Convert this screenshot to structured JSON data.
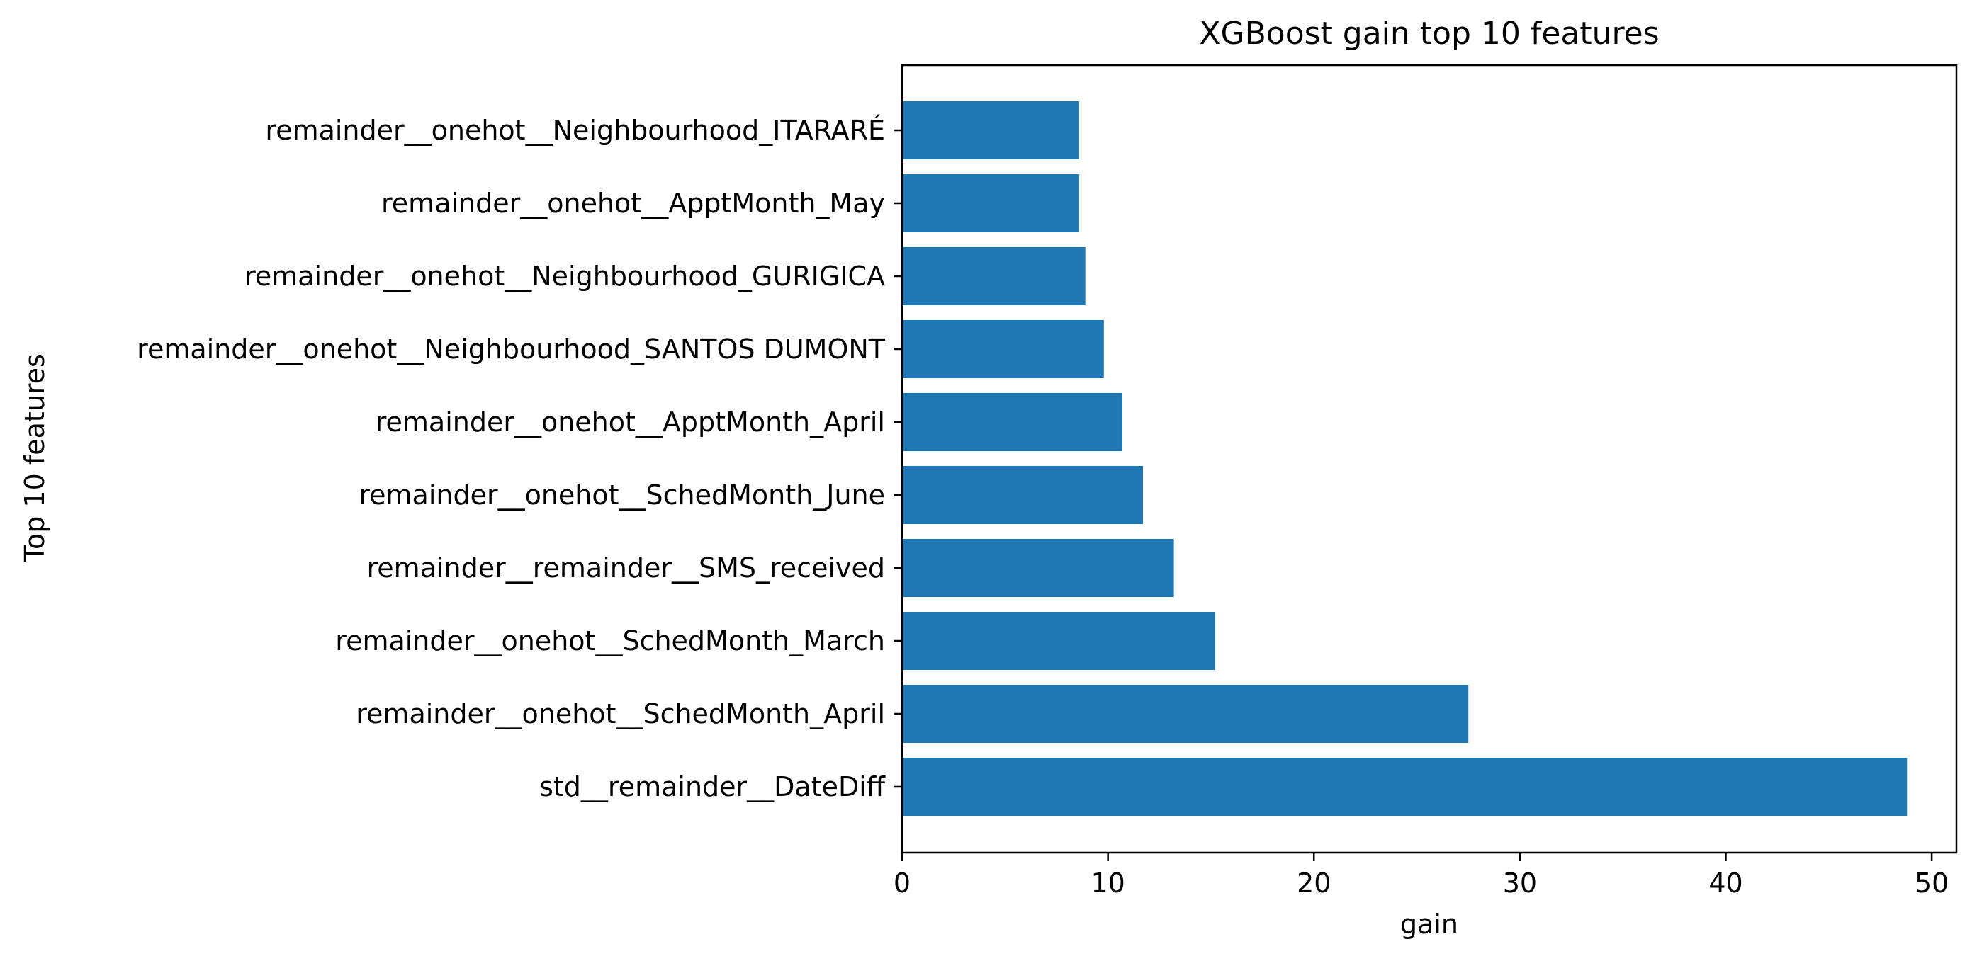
{
  "chart_data": {
    "type": "bar",
    "orientation": "horizontal",
    "title": "XGBoost gain top 10 features",
    "xlabel": "gain",
    "ylabel": "Top 10 features",
    "xlim": [
      0,
      51.2
    ],
    "xticks": [
      0,
      10,
      20,
      30,
      40,
      50
    ],
    "grid": false,
    "bar_color": "#1f77b4",
    "categories": [
      "remainder__onehot__Neighbourhood_ITARARÉ",
      "remainder__onehot__ApptMonth_May",
      "remainder__onehot__Neighbourhood_GURIGICA",
      "remainder__onehot__Neighbourhood_SANTOS DUMONT",
      "remainder__onehot__ApptMonth_April",
      "remainder__onehot__SchedMonth_June",
      "remainder__remainder__SMS_received",
      "remainder__onehot__SchedMonth_March",
      "remainder__onehot__SchedMonth_April",
      "std__remainder__DateDiff"
    ],
    "values": [
      8.6,
      8.6,
      8.9,
      9.8,
      10.7,
      11.7,
      13.2,
      15.2,
      27.5,
      48.8
    ]
  }
}
